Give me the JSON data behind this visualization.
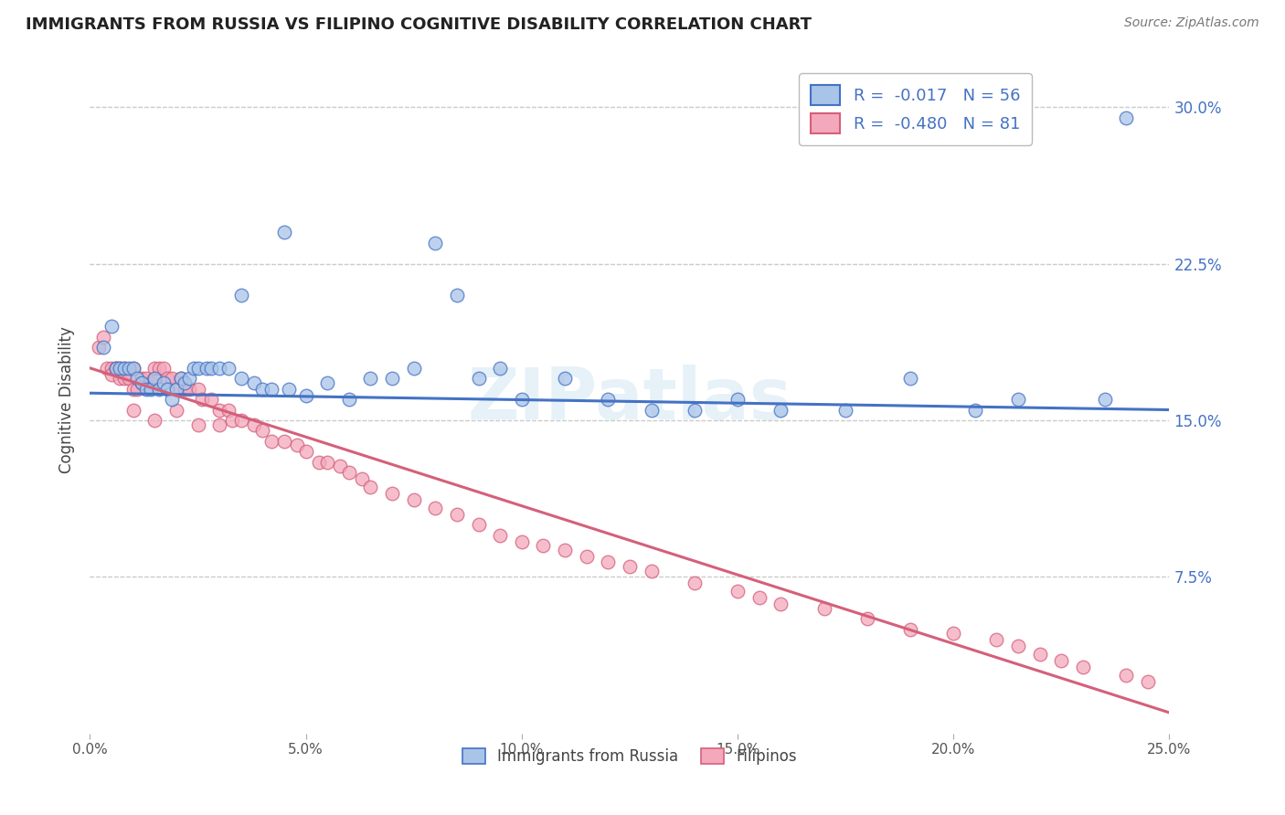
{
  "title": "IMMIGRANTS FROM RUSSIA VS FILIPINO COGNITIVE DISABILITY CORRELATION CHART",
  "source": "Source: ZipAtlas.com",
  "ylabel_label": "Cognitive Disability",
  "legend_label1": "Immigrants from Russia",
  "legend_label2": "Filipinos",
  "R1": -0.017,
  "N1": 56,
  "R2": -0.48,
  "N2": 81,
  "color_blue": "#a8c4e8",
  "color_pink": "#f4a8bc",
  "line_blue": "#4472c4",
  "line_pink": "#d4607a",
  "xlim": [
    0.0,
    0.25
  ],
  "ylim": [
    0.0,
    0.32
  ],
  "xticks": [
    0.0,
    0.05,
    0.1,
    0.15,
    0.2,
    0.25
  ],
  "xtick_labels": [
    "0.0%",
    "5.0%",
    "10.0%",
    "15.0%",
    "20.0%",
    "25.0%"
  ],
  "yticks": [
    0.075,
    0.15,
    0.225,
    0.3
  ],
  "ytick_labels": [
    "7.5%",
    "15.0%",
    "22.5%",
    "30.0%"
  ],
  "watermark": "ZIPatlas",
  "blue_scatter_x": [
    0.003,
    0.005,
    0.006,
    0.007,
    0.008,
    0.009,
    0.01,
    0.011,
    0.012,
    0.013,
    0.014,
    0.015,
    0.016,
    0.017,
    0.018,
    0.019,
    0.02,
    0.021,
    0.022,
    0.023,
    0.024,
    0.025,
    0.027,
    0.028,
    0.03,
    0.032,
    0.035,
    0.038,
    0.04,
    0.042,
    0.046,
    0.05,
    0.055,
    0.06,
    0.065,
    0.07,
    0.075,
    0.08,
    0.085,
    0.09,
    0.095,
    0.1,
    0.11,
    0.12,
    0.13,
    0.14,
    0.15,
    0.16,
    0.175,
    0.19,
    0.205,
    0.215,
    0.235,
    0.24,
    0.035,
    0.045
  ],
  "blue_scatter_y": [
    0.185,
    0.195,
    0.175,
    0.175,
    0.175,
    0.175,
    0.175,
    0.17,
    0.168,
    0.165,
    0.165,
    0.17,
    0.165,
    0.168,
    0.165,
    0.16,
    0.165,
    0.17,
    0.168,
    0.17,
    0.175,
    0.175,
    0.175,
    0.175,
    0.175,
    0.175,
    0.17,
    0.168,
    0.165,
    0.165,
    0.165,
    0.162,
    0.168,
    0.16,
    0.17,
    0.17,
    0.175,
    0.235,
    0.21,
    0.17,
    0.175,
    0.16,
    0.17,
    0.16,
    0.155,
    0.155,
    0.16,
    0.155,
    0.155,
    0.17,
    0.155,
    0.16,
    0.16,
    0.295,
    0.21,
    0.24
  ],
  "pink_scatter_x": [
    0.002,
    0.003,
    0.004,
    0.005,
    0.005,
    0.006,
    0.006,
    0.007,
    0.007,
    0.008,
    0.008,
    0.009,
    0.01,
    0.01,
    0.011,
    0.012,
    0.012,
    0.013,
    0.014,
    0.015,
    0.015,
    0.016,
    0.017,
    0.018,
    0.019,
    0.02,
    0.021,
    0.022,
    0.023,
    0.025,
    0.026,
    0.028,
    0.03,
    0.032,
    0.033,
    0.035,
    0.038,
    0.04,
    0.042,
    0.045,
    0.048,
    0.05,
    0.053,
    0.055,
    0.058,
    0.06,
    0.063,
    0.065,
    0.07,
    0.075,
    0.08,
    0.085,
    0.09,
    0.095,
    0.1,
    0.105,
    0.11,
    0.115,
    0.12,
    0.125,
    0.13,
    0.14,
    0.15,
    0.155,
    0.16,
    0.17,
    0.18,
    0.19,
    0.2,
    0.21,
    0.215,
    0.22,
    0.225,
    0.23,
    0.24,
    0.245,
    0.01,
    0.015,
    0.02,
    0.025,
    0.03
  ],
  "pink_scatter_y": [
    0.185,
    0.19,
    0.175,
    0.175,
    0.172,
    0.175,
    0.175,
    0.175,
    0.17,
    0.175,
    0.17,
    0.17,
    0.175,
    0.165,
    0.165,
    0.168,
    0.17,
    0.17,
    0.168,
    0.17,
    0.175,
    0.175,
    0.175,
    0.17,
    0.17,
    0.165,
    0.17,
    0.165,
    0.165,
    0.165,
    0.16,
    0.16,
    0.155,
    0.155,
    0.15,
    0.15,
    0.148,
    0.145,
    0.14,
    0.14,
    0.138,
    0.135,
    0.13,
    0.13,
    0.128,
    0.125,
    0.122,
    0.118,
    0.115,
    0.112,
    0.108,
    0.105,
    0.1,
    0.095,
    0.092,
    0.09,
    0.088,
    0.085,
    0.082,
    0.08,
    0.078,
    0.072,
    0.068,
    0.065,
    0.062,
    0.06,
    0.055,
    0.05,
    0.048,
    0.045,
    0.042,
    0.038,
    0.035,
    0.032,
    0.028,
    0.025,
    0.155,
    0.15,
    0.155,
    0.148,
    0.148
  ],
  "blue_line_x": [
    0.0,
    0.25
  ],
  "blue_line_y": [
    0.163,
    0.155
  ],
  "pink_line_x": [
    0.0,
    0.25
  ],
  "pink_line_y": [
    0.175,
    0.01
  ]
}
